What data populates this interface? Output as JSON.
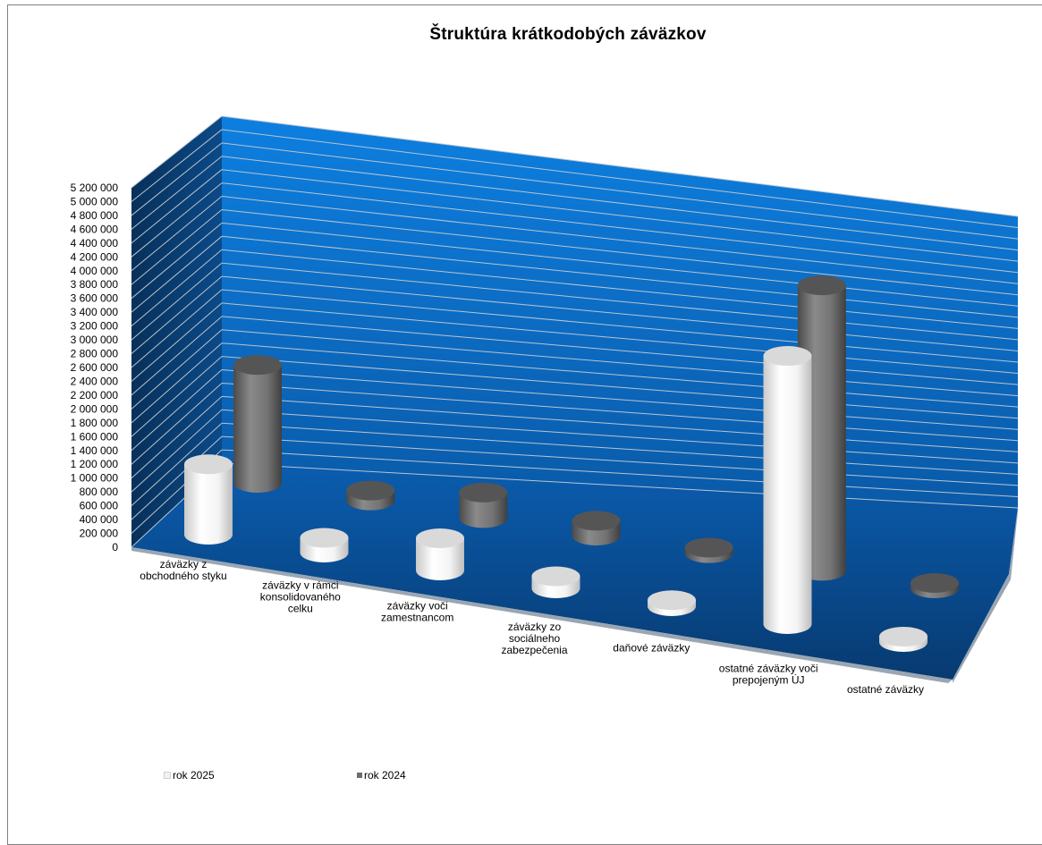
{
  "chart_data": {
    "type": "bar",
    "style": "3d-cylinder",
    "title": "Štruktúra krátkodobých záväzkov",
    "categories": [
      "záväzky z obchodného styku",
      "záväzky v rámci konsolidovaného celku",
      "záväzky voči zamestnancom",
      "záväzky zo sociálneho zabezpečenia",
      "daňové záväzky",
      "ostatné záväzky voči prepojeným ÚJ",
      "ostatné záväzky"
    ],
    "category_label_lines": [
      [
        "záväzky z",
        "obchodného styku"
      ],
      [
        "záväzky v rámci",
        "konsolidovaného",
        "celku"
      ],
      [
        "záväzky voči",
        "zamestnancom"
      ],
      [
        "záväzky zo",
        "sociálneho",
        "zabezpečenia"
      ],
      [
        "daňové záväzky"
      ],
      [
        "ostatné záväzky voči",
        "prepojeným ÚJ"
      ],
      [
        "ostatné záväzky"
      ]
    ],
    "series": [
      {
        "name": "rok 2025",
        "color": "#f2f2f2",
        "values": [
          1050000,
          220000,
          480000,
          180000,
          90000,
          4000000,
          5000
        ]
      },
      {
        "name": "rok 2024",
        "color": "#6d6d6d",
        "values": [
          1900000,
          160000,
          410000,
          240000,
          90000,
          4600000,
          5000
        ]
      }
    ],
    "yticks": [
      "0",
      "200 000",
      "400 000",
      "600 000",
      "800 000",
      "1 000 000",
      "1 200 000",
      "1 400 000",
      "1 600 000",
      "1 800 000",
      "2 000 000",
      "2 200 000",
      "2 400 000",
      "2 600 000",
      "2 800 000",
      "3 000 000",
      "3 200 000",
      "3 400 000",
      "3 600 000",
      "3 800 000",
      "4 000 000",
      "4 200 000",
      "4 400 000",
      "4 600 000",
      "4 800 000",
      "5 000 000",
      "5 200 000"
    ],
    "ylim": [
      0,
      5200000
    ],
    "grid": true,
    "legend_position": "bottom-left",
    "colors": {
      "back_wall": "#0a6fc6",
      "side_wall": "#0b3e72",
      "floor": "#0a4f94",
      "gridline": "#b8c4d0"
    }
  }
}
